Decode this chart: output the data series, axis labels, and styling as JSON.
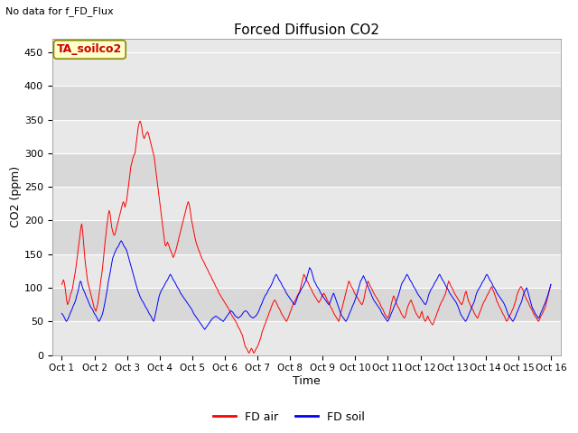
{
  "title": "Forced Diffusion CO2",
  "xlabel": "Time",
  "ylabel": "CO2 (ppm)",
  "top_left_text": "No data for f_FD_Flux",
  "legend_box_text": "TA_soilco2",
  "ylim": [
    0,
    470
  ],
  "yticks": [
    0,
    50,
    100,
    150,
    200,
    250,
    300,
    350,
    400,
    450
  ],
  "xtick_labels": [
    "Oct 1",
    "Oct 2",
    "Oct 3",
    "Oct 4",
    "Oct 5",
    "Oct 6",
    "Oct 7",
    "Oct 8",
    "Oct 9",
    "Oct 10",
    "Oct 11",
    "Oct 12",
    "Oct 13",
    "Oct 14",
    "Oct 15",
    "Oct 16"
  ],
  "background_color": "#e8e8e8",
  "line_color_red": "#ff0000",
  "line_color_blue": "#0000ff",
  "legend_entries": [
    "FD air",
    "FD soil"
  ],
  "fd_air": [
    105,
    108,
    112,
    108,
    100,
    90,
    80,
    75,
    78,
    82,
    88,
    92,
    95,
    100,
    108,
    115,
    122,
    130,
    140,
    150,
    160,
    170,
    180,
    190,
    195,
    185,
    170,
    155,
    140,
    130,
    120,
    110,
    105,
    100,
    95,
    90,
    85,
    80,
    75,
    70,
    68,
    65,
    70,
    75,
    82,
    92,
    102,
    112,
    120,
    130,
    142,
    155,
    168,
    178,
    190,
    200,
    210,
    215,
    210,
    200,
    190,
    185,
    180,
    178,
    180,
    185,
    190,
    195,
    200,
    205,
    210,
    215,
    220,
    225,
    228,
    225,
    220,
    225,
    230,
    240,
    250,
    260,
    270,
    280,
    285,
    290,
    295,
    298,
    300,
    310,
    320,
    330,
    340,
    345,
    348,
    345,
    340,
    330,
    325,
    322,
    325,
    328,
    330,
    332,
    330,
    325,
    320,
    315,
    310,
    305,
    300,
    295,
    285,
    275,
    265,
    255,
    245,
    235,
    225,
    215,
    205,
    195,
    185,
    175,
    165,
    162,
    165,
    168,
    165,
    162,
    158,
    155,
    152,
    148,
    145,
    148,
    152,
    155,
    160,
    165,
    170,
    175,
    180,
    185,
    190,
    195,
    200,
    205,
    210,
    215,
    220,
    225,
    228,
    225,
    218,
    210,
    200,
    195,
    188,
    182,
    175,
    170,
    165,
    162,
    158,
    155,
    152,
    148,
    145,
    142,
    140,
    138,
    135,
    132,
    130,
    128,
    125,
    122,
    120,
    118,
    115,
    112,
    110,
    108,
    105,
    102,
    100,
    98,
    95,
    92,
    90,
    88,
    86,
    84,
    82,
    80,
    78,
    76,
    74,
    72,
    70,
    68,
    65,
    62,
    60,
    58,
    56,
    54,
    52,
    50,
    48,
    45,
    42,
    40,
    38,
    35,
    32,
    30,
    25,
    20,
    15,
    12,
    10,
    8,
    5,
    3,
    5,
    8,
    10,
    8,
    5,
    3,
    5,
    8,
    10,
    12,
    15,
    18,
    22,
    25,
    30,
    35,
    38,
    42,
    45,
    48,
    52,
    55,
    58,
    62,
    65,
    68,
    72,
    75,
    78,
    80,
    82,
    80,
    78,
    75,
    72,
    70,
    68,
    65,
    62,
    60,
    58,
    56,
    54,
    52,
    50,
    52,
    55,
    58,
    62,
    65,
    68,
    72,
    75,
    78,
    80,
    82,
    85,
    88,
    90,
    92,
    95,
    100,
    105,
    110,
    115,
    120,
    118,
    115,
    112,
    110,
    108,
    105,
    102,
    100,
    98,
    95,
    92,
    90,
    88,
    86,
    84,
    82,
    80,
    78,
    80,
    82,
    85,
    88,
    90,
    92,
    90,
    88,
    85,
    82,
    80,
    78,
    75,
    72,
    70,
    68,
    65,
    62,
    60,
    58,
    56,
    54,
    52,
    50,
    55,
    60,
    65,
    70,
    75,
    80,
    85,
    90,
    95,
    100,
    105,
    110,
    108,
    105,
    102,
    100,
    98,
    95,
    92,
    90,
    88,
    86,
    84,
    82,
    80,
    78,
    76,
    75,
    78,
    82,
    88,
    95,
    100,
    105,
    110,
    108,
    105,
    102,
    100,
    98,
    95,
    92,
    90,
    88,
    86,
    84,
    82,
    80,
    78,
    75,
    72,
    70,
    68,
    65,
    62,
    60,
    58,
    56,
    55,
    58,
    62,
    68,
    75,
    80,
    85,
    88,
    85,
    82,
    78,
    75,
    72,
    70,
    68,
    65,
    62,
    60,
    58,
    56,
    55,
    58,
    62,
    68,
    72,
    75,
    78,
    80,
    82,
    78,
    75,
    72,
    68,
    65,
    62,
    60,
    58,
    56,
    55,
    58,
    62,
    65,
    60,
    55,
    52,
    50,
    52,
    55,
    58,
    55,
    52,
    50,
    48,
    46,
    45,
    48,
    52,
    55,
    58,
    62,
    65,
    68,
    72,
    75,
    78,
    80,
    82,
    85,
    88,
    90,
    95,
    100,
    105,
    110,
    108,
    105,
    102,
    100,
    98,
    95,
    92,
    90,
    88,
    86,
    84,
    82,
    80,
    78,
    76,
    75,
    78,
    82,
    88,
    92,
    95,
    90,
    85,
    80,
    78,
    75,
    72,
    70,
    68,
    65,
    62,
    60,
    58,
    56,
    55,
    58,
    62,
    65,
    68,
    72,
    75,
    78,
    80,
    82,
    85,
    88,
    90,
    92,
    95,
    98,
    100,
    102,
    98,
    95,
    92,
    88,
    85,
    80,
    78,
    75,
    72,
    70,
    68,
    65,
    62,
    60,
    58,
    55,
    52,
    50,
    52,
    55,
    58,
    60,
    62,
    65,
    68,
    70,
    75,
    78,
    82,
    88,
    92,
    95,
    98,
    100,
    102,
    100,
    98,
    95,
    92,
    88,
    85,
    82,
    80,
    78,
    75,
    72,
    70,
    68,
    65,
    62,
    60,
    58,
    56,
    55,
    52,
    50,
    52,
    55,
    58,
    60,
    62,
    65,
    68,
    70,
    75,
    80,
    85,
    90,
    95,
    100,
    105
  ],
  "fd_soil": [
    62,
    60,
    58,
    55,
    52,
    50,
    52,
    55,
    58,
    62,
    65,
    68,
    72,
    75,
    78,
    82,
    88,
    92,
    98,
    105,
    110,
    108,
    102,
    98,
    95,
    92,
    88,
    85,
    82,
    78,
    75,
    72,
    70,
    68,
    65,
    62,
    60,
    58,
    55,
    52,
    50,
    52,
    55,
    58,
    62,
    68,
    75,
    82,
    90,
    98,
    108,
    115,
    122,
    130,
    138,
    145,
    148,
    152,
    155,
    158,
    160,
    162,
    165,
    168,
    170,
    168,
    165,
    162,
    160,
    158,
    155,
    150,
    145,
    140,
    135,
    130,
    125,
    120,
    115,
    110,
    105,
    100,
    95,
    92,
    88,
    85,
    82,
    80,
    78,
    75,
    72,
    70,
    68,
    65,
    62,
    60,
    58,
    55,
    52,
    50,
    55,
    62,
    68,
    75,
    82,
    88,
    92,
    95,
    98,
    100,
    102,
    105,
    108,
    110,
    112,
    115,
    118,
    120,
    118,
    115,
    112,
    110,
    108,
    105,
    102,
    100,
    98,
    95,
    92,
    90,
    88,
    86,
    84,
    82,
    80,
    78,
    76,
    74,
    72,
    70,
    68,
    65,
    62,
    60,
    58,
    56,
    54,
    52,
    50,
    48,
    46,
    44,
    42,
    40,
    38,
    40,
    42,
    44,
    46,
    48,
    50,
    52,
    54,
    55,
    56,
    57,
    58,
    57,
    56,
    55,
    54,
    53,
    52,
    51,
    50,
    52,
    54,
    56,
    58,
    60,
    62,
    64,
    66,
    65,
    64,
    62,
    60,
    58,
    57,
    56,
    55,
    56,
    57,
    58,
    60,
    62,
    64,
    65,
    66,
    65,
    64,
    62,
    60,
    58,
    57,
    56,
    55,
    56,
    57,
    58,
    60,
    62,
    65,
    68,
    72,
    75,
    78,
    82,
    85,
    88,
    90,
    92,
    95,
    98,
    100,
    102,
    105,
    108,
    112,
    115,
    118,
    120,
    118,
    115,
    112,
    110,
    108,
    105,
    102,
    100,
    98,
    95,
    92,
    90,
    88,
    86,
    84,
    82,
    80,
    78,
    76,
    75,
    78,
    82,
    86,
    90,
    92,
    95,
    98,
    100,
    102,
    105,
    108,
    110,
    115,
    120,
    125,
    130,
    128,
    125,
    120,
    115,
    110,
    108,
    105,
    102,
    100,
    98,
    95,
    92,
    90,
    88,
    86,
    84,
    82,
    80,
    78,
    76,
    75,
    78,
    82,
    86,
    90,
    92,
    88,
    84,
    80,
    76,
    72,
    68,
    64,
    60,
    58,
    56,
    54,
    52,
    50,
    52,
    55,
    58,
    62,
    65,
    68,
    72,
    75,
    78,
    82,
    86,
    90,
    95,
    100,
    105,
    110,
    112,
    115,
    118,
    115,
    112,
    108,
    105,
    102,
    98,
    95,
    92,
    88,
    85,
    82,
    80,
    78,
    76,
    74,
    72,
    70,
    68,
    65,
    62,
    60,
    58,
    56,
    54,
    52,
    50,
    52,
    55,
    58,
    62,
    65,
    68,
    72,
    75,
    78,
    82,
    86,
    90,
    95,
    100,
    105,
    108,
    110,
    112,
    115,
    118,
    120,
    118,
    115,
    112,
    110,
    108,
    105,
    102,
    100,
    98,
    95,
    92,
    90,
    88,
    86,
    84,
    82,
    80,
    78,
    76,
    75,
    78,
    82,
    88,
    92,
    95,
    98,
    100,
    102,
    105,
    108,
    110,
    112,
    115,
    118,
    120,
    118,
    115,
    112,
    110,
    108,
    105,
    102,
    100,
    98,
    95,
    92,
    90,
    88,
    86,
    84,
    82,
    80,
    78,
    75,
    72,
    68,
    64,
    60,
    58,
    56,
    54,
    52,
    50,
    52,
    55,
    58,
    62,
    65,
    68,
    72,
    75,
    78,
    82,
    88,
    92,
    95,
    98,
    100,
    102,
    105,
    108,
    110,
    112,
    115,
    118,
    120,
    118,
    115,
    112,
    110,
    108,
    105,
    102,
    100,
    98,
    95,
    92,
    90,
    88,
    86,
    84,
    82,
    80,
    78,
    75,
    72,
    68,
    64,
    60,
    58,
    56,
    54,
    52,
    50,
    52,
    55,
    58,
    62,
    65,
    68,
    72,
    75,
    78,
    82,
    88,
    92,
    95,
    98,
    100,
    95,
    90,
    85,
    80,
    75,
    70,
    68,
    65,
    62,
    60,
    58,
    56,
    55,
    58,
    62,
    65,
    68,
    72,
    75,
    78,
    82,
    86,
    90,
    95,
    100,
    105
  ]
}
